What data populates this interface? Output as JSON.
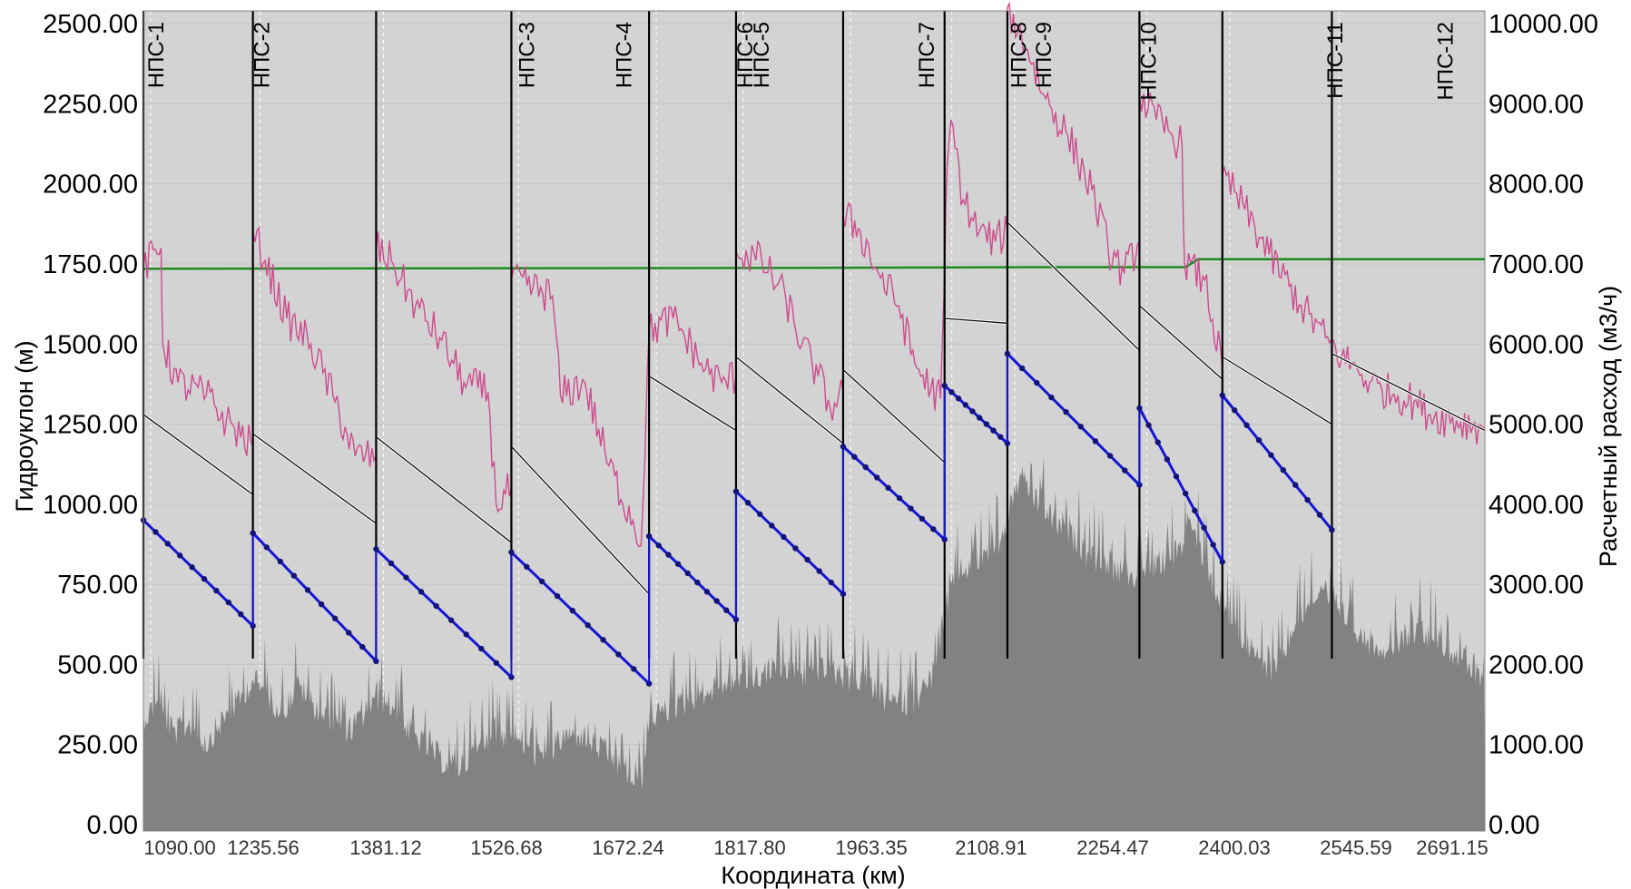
{
  "chart_data": {
    "type": "line",
    "xlabel": "Координата (км)",
    "ylabel": "Гидроуклон (м)",
    "y2label": "Расчетный расход (м3/ч)",
    "xlim": [
      1062,
      2728
    ],
    "ylim": [
      -20,
      2540
    ],
    "y2lim": [
      -80,
      10160
    ],
    "grid": true,
    "x_ticks": [
      "1090.00",
      "1235.56",
      "1381.12",
      "1526.68",
      "1672.24",
      "1817.80",
      "1963.35",
      "2108.91",
      "2254.47",
      "2400.03",
      "2545.59",
      "2691.15"
    ],
    "y_ticks": [
      "0.00",
      "250.00",
      "500.00",
      "750.00",
      "1000.00",
      "1250.00",
      "1500.00",
      "1750.00",
      "2000.00",
      "2250.00",
      "2500.00"
    ],
    "y2_ticks": [
      "0.00",
      "1000.00",
      "2000.00",
      "3000.00",
      "4000.00",
      "5000.00",
      "6000.00",
      "7000.00",
      "8000.00",
      "9000.00",
      "10000.00"
    ],
    "stations": [
      {
        "name": "НПС-1",
        "x": 1062
      },
      {
        "name": "НПС-2",
        "x": 1198
      },
      {
        "name": "НПС-3",
        "x": 1351
      },
      {
        "name": "НПС-4",
        "x": 1519
      },
      {
        "name": "НПС-5",
        "x": 1690
      },
      {
        "name": "НПС-6",
        "x": 1798
      },
      {
        "name": "НПС-7",
        "x": 1931
      },
      {
        "name": "НПС-8",
        "x": 2057
      },
      {
        "name": "НПС-9",
        "x": 2135
      },
      {
        "name": "НПС-10",
        "x": 2299
      },
      {
        "name": "НПС-11",
        "x": 2402
      },
      {
        "name": "НПС-12",
        "x": 2538
      }
    ],
    "series": [
      {
        "axis": "y2",
        "color": "#1e8a1e",
        "points": [
          [
            1062,
            6940
          ],
          [
            1400,
            6945
          ],
          [
            1800,
            6950
          ],
          [
            2200,
            6960
          ],
          [
            2356,
            6960
          ],
          [
            2366,
            7020
          ],
          [
            2372,
            7060
          ],
          [
            2500,
            7060
          ],
          [
            2728,
            7060
          ]
        ]
      },
      {
        "axis": "y",
        "color": "#0a0a0a",
        "segments": [
          [
            [
              1062,
              1280
            ],
            [
              1198,
              1030
            ]
          ],
          [
            [
              1198,
              1220
            ],
            [
              1351,
              940
            ]
          ],
          [
            [
              1351,
              1210
            ],
            [
              1519,
              880
            ]
          ],
          [
            [
              1519,
              1180
            ],
            [
              1690,
              720
            ]
          ],
          [
            [
              1690,
              1400
            ],
            [
              1798,
              1230
            ]
          ],
          [
            [
              1798,
              1460
            ],
            [
              1931,
              1190
            ]
          ],
          [
            [
              1931,
              1420
            ],
            [
              2057,
              1130
            ]
          ],
          [
            [
              2057,
              1580
            ],
            [
              2135,
              1565
            ]
          ],
          [
            [
              2135,
              1880
            ],
            [
              2299,
              1480
            ]
          ],
          [
            [
              2299,
              1620
            ],
            [
              2402,
              1390
            ]
          ],
          [
            [
              2402,
              1460
            ],
            [
              2538,
              1250
            ]
          ],
          [
            [
              2538,
              1470
            ],
            [
              2728,
              1230
            ]
          ]
        ]
      },
      {
        "axis": "y",
        "color": "#1515d4",
        "markers": true,
        "segments": [
          [
            [
              1062,
              950
            ],
            [
              1198,
              620
            ]
          ],
          [
            [
              1198,
              910
            ],
            [
              1351,
              510
            ]
          ],
          [
            [
              1351,
              860
            ],
            [
              1519,
              460
            ]
          ],
          [
            [
              1519,
              850
            ],
            [
              1690,
              440
            ]
          ],
          [
            [
              1690,
              900
            ],
            [
              1798,
              640
            ]
          ],
          [
            [
              1798,
              1040
            ],
            [
              1931,
              720
            ]
          ],
          [
            [
              1931,
              1180
            ],
            [
              2057,
              890
            ]
          ],
          [
            [
              2057,
              1370
            ],
            [
              2135,
              1190
            ]
          ],
          [
            [
              2135,
              1470
            ],
            [
              2299,
              1060
            ]
          ],
          [
            [
              2299,
              1300
            ],
            [
              2402,
              820
            ]
          ],
          [
            [
              2402,
              1340
            ],
            [
              2538,
              920
            ]
          ]
        ]
      },
      {
        "axis": "y",
        "color": "#cc4c8e",
        "jagged": true,
        "amplitude": 75,
        "points": [
          [
            1062,
            1740
          ],
          [
            1084,
            1800
          ],
          [
            1086,
            1500
          ],
          [
            1105,
            1380
          ],
          [
            1140,
            1340
          ],
          [
            1165,
            1260
          ],
          [
            1198,
            1180
          ],
          [
            1198,
            1850
          ],
          [
            1213,
            1760
          ],
          [
            1240,
            1580
          ],
          [
            1270,
            1500
          ],
          [
            1300,
            1320
          ],
          [
            1325,
            1150
          ],
          [
            1351,
            1150
          ],
          [
            1351,
            1800
          ],
          [
            1370,
            1760
          ],
          [
            1400,
            1620
          ],
          [
            1430,
            1520
          ],
          [
            1460,
            1380
          ],
          [
            1490,
            1350
          ],
          [
            1500,
            1000
          ],
          [
            1519,
            1050
          ],
          [
            1519,
            1700
          ],
          [
            1570,
            1650
          ],
          [
            1580,
            1340
          ],
          [
            1610,
            1380
          ],
          [
            1640,
            1120
          ],
          [
            1670,
            950
          ],
          [
            1680,
            870
          ],
          [
            1690,
            1540
          ],
          [
            1720,
            1580
          ],
          [
            1760,
            1420
          ],
          [
            1780,
            1380
          ],
          [
            1798,
            1400
          ],
          [
            1798,
            1790
          ],
          [
            1830,
            1760
          ],
          [
            1860,
            1640
          ],
          [
            1880,
            1500
          ],
          [
            1900,
            1400
          ],
          [
            1915,
            1300
          ],
          [
            1931,
            1350
          ],
          [
            1931,
            1900
          ],
          [
            1950,
            1860
          ],
          [
            1975,
            1720
          ],
          [
            2000,
            1620
          ],
          [
            2020,
            1440
          ],
          [
            2040,
            1360
          ],
          [
            2052,
            1330
          ],
          [
            2057,
            1700
          ],
          [
            2060,
            2050
          ],
          [
            2065,
            2200
          ],
          [
            2080,
            1950
          ],
          [
            2100,
            1850
          ],
          [
            2120,
            1820
          ],
          [
            2135,
            1850
          ],
          [
            2135,
            2550
          ],
          [
            2160,
            2420
          ],
          [
            2180,
            2280
          ],
          [
            2210,
            2150
          ],
          [
            2240,
            1980
          ],
          [
            2260,
            1800
          ],
          [
            2280,
            1720
          ],
          [
            2299,
            1820
          ],
          [
            2299,
            2280
          ],
          [
            2320,
            2200
          ],
          [
            2340,
            2150
          ],
          [
            2352,
            2120
          ],
          [
            2355,
            1750
          ],
          [
            2380,
            1700
          ],
          [
            2402,
            1420
          ],
          [
            2402,
            2030
          ],
          [
            2430,
            1920
          ],
          [
            2460,
            1780
          ],
          [
            2500,
            1620
          ],
          [
            2530,
            1520
          ],
          [
            2550,
            1460
          ],
          [
            2570,
            1420
          ],
          [
            2585,
            1380
          ],
          [
            2600,
            1360
          ],
          [
            2620,
            1340
          ],
          [
            2640,
            1320
          ],
          [
            2660,
            1280
          ],
          [
            2728,
            1240
          ]
        ]
      },
      {
        "axis": "y",
        "color": "#828282",
        "area": true,
        "points": [
          [
            1062,
            380
          ],
          [
            1080,
            420
          ],
          [
            1100,
            330
          ],
          [
            1120,
            360
          ],
          [
            1140,
            300
          ],
          [
            1160,
            370
          ],
          [
            1180,
            430
          ],
          [
            1198,
            500
          ],
          [
            1215,
            450
          ],
          [
            1235,
            400
          ],
          [
            1255,
            480
          ],
          [
            1280,
            400
          ],
          [
            1300,
            360
          ],
          [
            1320,
            340
          ],
          [
            1351,
            440
          ],
          [
            1370,
            420
          ],
          [
            1390,
            340
          ],
          [
            1410,
            300
          ],
          [
            1430,
            250
          ],
          [
            1450,
            220
          ],
          [
            1470,
            260
          ],
          [
            1490,
            320
          ],
          [
            1519,
            330
          ],
          [
            1540,
            280
          ],
          [
            1560,
            250
          ],
          [
            1580,
            310
          ],
          [
            1600,
            330
          ],
          [
            1620,
            300
          ],
          [
            1640,
            260
          ],
          [
            1660,
            220
          ],
          [
            1680,
            150
          ],
          [
            1690,
            380
          ],
          [
            1710,
            400
          ],
          [
            1730,
            420
          ],
          [
            1750,
            450
          ],
          [
            1770,
            470
          ],
          [
            1798,
            500
          ],
          [
            1820,
            500
          ],
          [
            1840,
            530
          ],
          [
            1860,
            520
          ],
          [
            1880,
            510
          ],
          [
            1900,
            530
          ],
          [
            1920,
            520
          ],
          [
            1940,
            500
          ],
          [
            1960,
            480
          ],
          [
            1980,
            440
          ],
          [
            2000,
            420
          ],
          [
            2020,
            430
          ],
          [
            2040,
            500
          ],
          [
            2057,
            680
          ],
          [
            2070,
            820
          ],
          [
            2090,
            860
          ],
          [
            2110,
            890
          ],
          [
            2125,
            910
          ],
          [
            2135,
            1000
          ],
          [
            2150,
            1130
          ],
          [
            2170,
            1060
          ],
          [
            2190,
            1000
          ],
          [
            2210,
            960
          ],
          [
            2230,
            900
          ],
          [
            2250,
            860
          ],
          [
            2270,
            840
          ],
          [
            2290,
            820
          ],
          [
            2310,
            840
          ],
          [
            2330,
            870
          ],
          [
            2350,
            900
          ],
          [
            2360,
            1000
          ],
          [
            2375,
            900
          ],
          [
            2390,
            800
          ],
          [
            2402,
            720
          ],
          [
            2420,
            650
          ],
          [
            2440,
            580
          ],
          [
            2460,
            520
          ],
          [
            2480,
            600
          ],
          [
            2500,
            700
          ],
          [
            2520,
            760
          ],
          [
            2538,
            740
          ],
          [
            2560,
            690
          ],
          [
            2580,
            620
          ],
          [
            2600,
            600
          ],
          [
            2620,
            620
          ],
          [
            2640,
            650
          ],
          [
            2660,
            640
          ],
          [
            2680,
            600
          ],
          [
            2700,
            560
          ],
          [
            2715,
            520
          ],
          [
            2728,
            460
          ]
        ]
      }
    ]
  }
}
